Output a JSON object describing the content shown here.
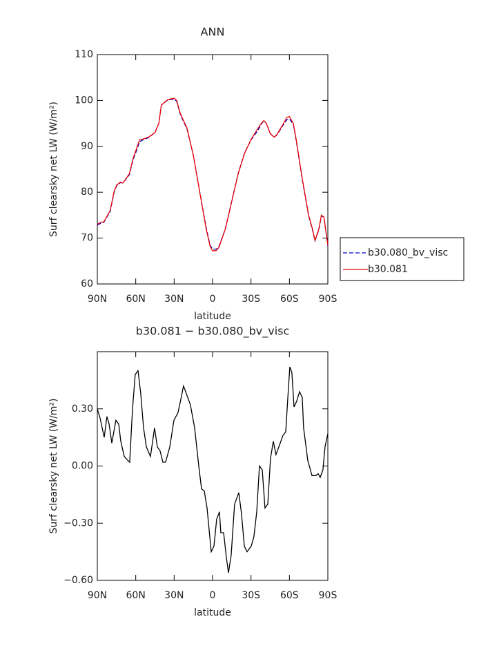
{
  "chart_data": [
    {
      "type": "line",
      "title": "ANN",
      "xlabel": "latitude",
      "ylabel": "Surf clearsky net LW (W/m²)",
      "xlim": [
        90,
        -90
      ],
      "xticks": [
        {
          "value": 90,
          "label": "90N"
        },
        {
          "value": 60,
          "label": "60N"
        },
        {
          "value": 30,
          "label": "30N"
        },
        0,
        {
          "value": -30,
          "label": "30S"
        },
        {
          "value": -60,
          "label": "60S"
        },
        {
          "value": -90,
          "label": "90S"
        }
      ],
      "ylim": [
        60,
        110
      ],
      "yticks": [
        60,
        70,
        80,
        90,
        100,
        110
      ],
      "legend": "right",
      "x": [
        90,
        87,
        85,
        80,
        77,
        75,
        72,
        70,
        65,
        62,
        60,
        57,
        55,
        50,
        45,
        42,
        40,
        35,
        30,
        28,
        25,
        20,
        15,
        10,
        5,
        2,
        0,
        -3,
        -5,
        -10,
        -15,
        -20,
        -25,
        -30,
        -35,
        -38,
        -40,
        -42,
        -45,
        -48,
        -50,
        -55,
        -58,
        -60,
        -63,
        -65,
        -70,
        -75,
        -78,
        -80,
        -83,
        -85,
        -87,
        -90
      ],
      "series": [
        {
          "name": "b30.080_bv_visc",
          "color": "#0000cc",
          "linestyle": "dashed",
          "values": [
            72.8,
            73.3,
            73.4,
            75.8,
            79.8,
            81.4,
            82.1,
            82,
            83.8,
            87.2,
            88.6,
            91,
            91.3,
            91.9,
            93,
            95,
            99,
            100.1,
            100.3,
            99.8,
            96.8,
            93.8,
            88,
            80.1,
            72.3,
            68.5,
            67.6,
            67.6,
            68.2,
            72.1,
            78.1,
            84.1,
            88.6,
            91.4,
            93.3,
            94.8,
            95.6,
            95,
            92.8,
            92,
            92.4,
            94.6,
            95.8,
            96,
            94.8,
            91.8,
            82.8,
            74.8,
            71.8,
            69.4,
            71.8,
            74.8,
            74.6,
            68.3
          ]
        },
        {
          "name": "b30.081",
          "color": "#ee0000",
          "linestyle": "solid",
          "values": [
            73,
            73.5,
            73.5,
            76,
            80,
            81.5,
            82.2,
            82,
            84,
            87.5,
            89,
            91.4,
            91.5,
            92,
            93,
            95,
            99,
            100.2,
            100.5,
            100,
            97,
            94,
            88,
            80,
            72,
            68.3,
            67.2,
            67.3,
            68,
            72,
            78,
            84,
            88.5,
            91.5,
            93.7,
            95,
            95.6,
            95,
            92.8,
            92,
            92.5,
            94.8,
            96.3,
            96.5,
            95,
            92,
            83,
            75,
            72,
            69.5,
            72,
            75,
            74.5,
            68.5
          ]
        }
      ]
    },
    {
      "type": "line",
      "title": "b30.081 − b30.080_bv_visc",
      "xlabel": "latitude",
      "ylabel": "Surf clearsky net LW (W/m²)",
      "xlim": [
        90,
        -90
      ],
      "xticks": [
        {
          "value": 90,
          "label": "90N"
        },
        {
          "value": 60,
          "label": "60N"
        },
        {
          "value": 30,
          "label": "30N"
        },
        0,
        {
          "value": -30,
          "label": "30S"
        },
        {
          "value": -60,
          "label": "60S"
        },
        {
          "value": -90,
          "label": "90S"
        }
      ],
      "ylim": [
        -0.6,
        0.6
      ],
      "yticks": [
        {
          "value": -0.6,
          "label": "−0.60"
        },
        {
          "value": -0.3,
          "label": "−0.30"
        },
        {
          "value": 0,
          "label": "0.00"
        },
        {
          "value": 0.3,
          "label": "0.30"
        }
      ],
      "x": [
        90,
        87.8,
        84.6,
        82.5,
        80.8,
        78.7,
        75.5,
        73.3,
        71.7,
        69,
        66.3,
        64.7,
        62.5,
        60.4,
        58.2,
        56.1,
        53.9,
        51.7,
        48.5,
        45.3,
        43.1,
        41,
        38.8,
        36.7,
        33.4,
        30.2,
        27,
        24.8,
        22.7,
        20.5,
        17.3,
        14,
        10.8,
        8.6,
        6.5,
        4.3,
        1.1,
        -1.1,
        -3.2,
        -5.4,
        -6.4,
        -8.6,
        -10.8,
        -12.4,
        -14.5,
        -17.2,
        -20.5,
        -22.6,
        -24.8,
        -26.9,
        -30.2,
        -32.3,
        -34.5,
        -36.6,
        -38.8,
        -40.9,
        -43.1,
        -45.2,
        -47.4,
        -49.5,
        -52.8,
        -54.9,
        -57.1,
        -58.7,
        -60.3,
        -61.9,
        -63.6,
        -65.7,
        -67.9,
        -70,
        -71.1,
        -74.3,
        -77.6,
        -80.8,
        -82.4,
        -84,
        -86.2,
        -87.8,
        -90
      ],
      "series": [
        {
          "color": "#000000",
          "linestyle": "solid",
          "values": [
            0.3,
            0.25,
            0.15,
            0.26,
            0.22,
            0.12,
            0.24,
            0.22,
            0.13,
            0.05,
            0.03,
            0.02,
            0.3,
            0.48,
            0.5,
            0.38,
            0.2,
            0.1,
            0.05,
            0.2,
            0.1,
            0.08,
            0.02,
            0.02,
            0.1,
            0.24,
            0.28,
            0.35,
            0.42,
            0.38,
            0.32,
            0.2,
            0,
            -0.12,
            -0.13,
            -0.22,
            -0.45,
            -0.42,
            -0.28,
            -0.24,
            -0.35,
            -0.35,
            -0.48,
            -0.56,
            -0.47,
            -0.2,
            -0.14,
            -0.25,
            -0.42,
            -0.45,
            -0.42,
            -0.37,
            -0.24,
            0,
            -0.02,
            -0.22,
            -0.2,
            0.04,
            0.13,
            0.06,
            0.12,
            0.16,
            0.18,
            0.35,
            0.52,
            0.49,
            0.31,
            0.34,
            0.39,
            0.36,
            0.2,
            0.03,
            -0.05,
            -0.05,
            -0.04,
            -0.06,
            -0.02,
            0.1,
            0.17
          ]
        }
      ]
    }
  ]
}
